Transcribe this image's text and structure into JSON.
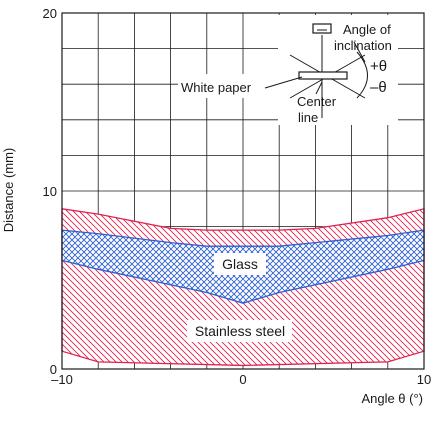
{
  "chart_data": {
    "type": "area",
    "xlabel": "Angle θ (°)",
    "ylabel": "Distance (mm)",
    "xlim": [
      -10,
      10
    ],
    "ylim": [
      0,
      20
    ],
    "x_ticks": [
      -10,
      0,
      10
    ],
    "x_tick_labels": [
      "–10",
      "0",
      "10"
    ],
    "y_ticks": [
      0,
      10,
      20
    ],
    "y_tick_labels": [
      "0",
      "10",
      "20"
    ],
    "grid": true,
    "series": [
      {
        "name": "Stainless steel",
        "color": "#e0224f",
        "pattern": "diagonal-hatch",
        "upper": {
          "x": [
            -10,
            -8,
            -4,
            -2,
            0,
            2,
            4,
            8,
            10
          ],
          "y": [
            9.0,
            8.7,
            7.9,
            7.8,
            7.8,
            7.8,
            7.9,
            8.5,
            9.0
          ]
        },
        "lower": {
          "x": [
            -10,
            -8,
            0,
            8,
            10
          ],
          "y": [
            1.0,
            0.4,
            0.2,
            0.4,
            1.0
          ]
        }
      },
      {
        "name": "Glass",
        "color": "#2d5fd0",
        "pattern": "cross-hatch",
        "upper": {
          "x": [
            -10,
            -8,
            -4,
            -2,
            0,
            2,
            4,
            8,
            10
          ],
          "y": [
            7.8,
            7.6,
            7.1,
            6.9,
            6.9,
            6.9,
            7.1,
            7.5,
            7.8
          ]
        },
        "lower": {
          "x": [
            -10,
            -8,
            -2,
            0,
            2,
            8,
            10
          ],
          "y": [
            6.1,
            5.6,
            4.3,
            3.7,
            4.3,
            5.6,
            6.1
          ]
        }
      }
    ],
    "annotations": {
      "glass_label": "Glass",
      "stainless_label": "Stainless steel"
    },
    "inset": {
      "white_paper": "White paper",
      "angle_line1": "Angle of",
      "angle_line2": "inclination",
      "plus_theta": "+θ",
      "minus_theta": "–θ",
      "center_line1": "Center",
      "center_line2": "line"
    },
    "colors": {
      "grid": "#1a1a1a",
      "stainless": "#e0224f",
      "glass": "#2d5fd0"
    }
  }
}
